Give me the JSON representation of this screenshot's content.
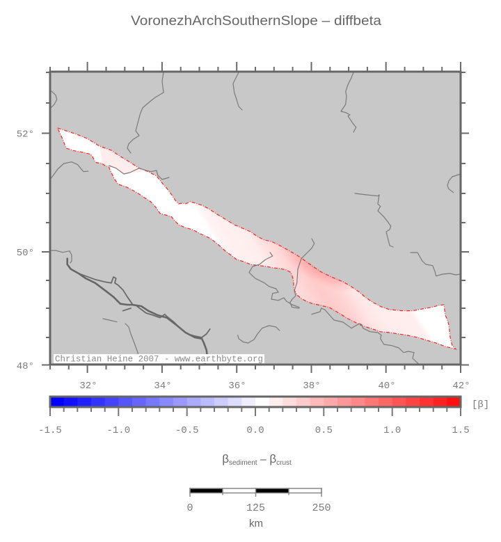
{
  "title": "VoronezhArchSouthernSlope – diffbeta",
  "map": {
    "background_color": "#c8c8c8",
    "frame_color": "#666666",
    "polygon_outline_color": "#ff2020",
    "polygon_max_color": "#ffaaaa",
    "lon_labels": [
      "32°",
      "34°",
      "36°",
      "38°",
      "40°",
      "42°"
    ],
    "lat_labels": [
      "52°",
      "50°",
      "48°"
    ],
    "credit": "Christian Heine 2007 - www.earthbyte.org"
  },
  "colorbar": {
    "unit_label": "[β]",
    "tick_labels": [
      "-1.5",
      "-1.0",
      "-0.5",
      "0.0",
      "0.5",
      "1.0",
      "1.5"
    ],
    "min": -1.5,
    "max": 1.5,
    "bin_width": 0.1,
    "colors": [
      "#0000ff",
      "#1111ff",
      "#2222ff",
      "#3333ff",
      "#4444ff",
      "#5555ff",
      "#6666ff",
      "#7777ff",
      "#8888ff",
      "#9999ff",
      "#aaaaff",
      "#bbbbff",
      "#ccccff",
      "#ddddff",
      "#eeeeff",
      "#ffffff",
      "#ffeeee",
      "#ffdddd",
      "#ffcccc",
      "#ffbbbb",
      "#ffaaaa",
      "#ff9999",
      "#ff8888",
      "#ff7777",
      "#ff6666",
      "#ff5555",
      "#ff4444",
      "#ff3333",
      "#ff2222",
      "#ff1111"
    ]
  },
  "axis_title": {
    "beta1": "β",
    "sub1": "sediment",
    "minus": " – ",
    "beta2": "β",
    "sub2": "crust"
  },
  "scalebar": {
    "tick_labels": [
      "0",
      "125",
      "250"
    ],
    "unit": "km"
  }
}
